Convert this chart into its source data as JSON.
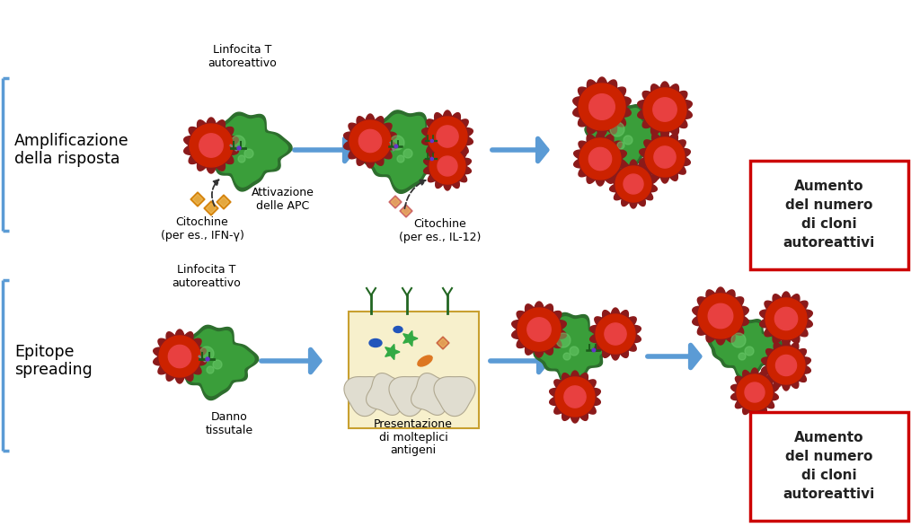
{
  "bg_color": "#ffffff",
  "label_amplificazione": "Amplificazione\ndella risposta",
  "label_epitope": "Epitope\nspreading",
  "label_linfocita_t_1": "Linfocita T\nautoreattivo",
  "label_linfocita_t_2": "Linfocita T\nautoreattivo",
  "label_attivazione": "Attivazione\ndelle APC",
  "label_citochine_1": "Citochine\n(per es., IFN-γ)",
  "label_citochine_2": "Citochine\n(per es., IL-12)",
  "label_danno": "Danno\ntissutale",
  "label_presentazione": "Presentazione\ndi molteplici\nantigeni",
  "label_aumento_1": "Aumento\ndel numero\ndi cloni\nautoreattivi",
  "label_aumento_2": "Aumento\ndel numero\ndi cloni\nautoreattivi",
  "arrow_color": "#5b9bd5",
  "bracket_color": "#5b9bd5",
  "cell_red_dark": "#8b1a1a",
  "cell_red_mid": "#cc2200",
  "cell_red_light": "#e84040",
  "cell_green_dark": "#2d6e2d",
  "cell_green_mid": "#3a9e3a",
  "cell_green_light": "#6dcc6d",
  "box_border_color": "#cc0000",
  "cytokine_orange": "#d4820a",
  "cytokine_pink": "#cc6666"
}
